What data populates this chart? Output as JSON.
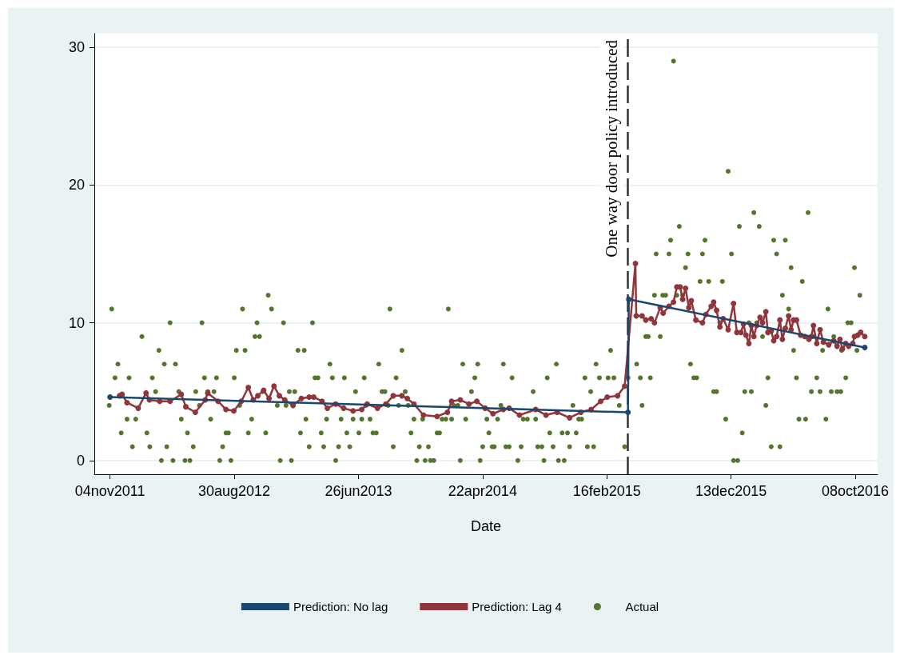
{
  "chart_data": {
    "type": "line",
    "xlabel": "Date",
    "marker": "circle",
    "grid": "y",
    "legend": "bottom",
    "xlim": [
      "2011-09-27",
      "2016-12-01"
    ],
    "xticks": [
      {
        "value": "2011-11-04",
        "label": "04nov2011"
      },
      {
        "value": "2012-08-30",
        "label": "30aug2012"
      },
      {
        "value": "2013-06-26",
        "label": "26jun2013"
      },
      {
        "value": "2014-04-22",
        "label": "22apr2014"
      },
      {
        "value": "2015-02-16",
        "label": "16feb2015"
      },
      {
        "value": "2015-12-13",
        "label": "13dec2015"
      },
      {
        "value": "2016-10-08",
        "label": "08oct2016"
      }
    ],
    "ylim": [
      -1,
      31
    ],
    "yticks": [
      0,
      10,
      20,
      30
    ],
    "ref_lines": [
      {
        "axis": "x",
        "value": "2015-04-08",
        "label": "One way door policy introduced",
        "color": "#333333",
        "line_style": "dashed"
      }
    ],
    "series": [
      {
        "name": "Prediction: No lag",
        "color": "#1a476f",
        "x": [
          "2011-11-04",
          "2015-04-08",
          "2015-04-10",
          "2016-10-31"
        ],
        "values": [
          4.6,
          3.5,
          11.7,
          8.2
        ]
      },
      {
        "name": "Prediction: Lag 4",
        "color": "#90353b",
        "x": [
          "2011-11-27",
          "2011-12-03",
          "2011-12-15",
          "2012-01-11",
          "2012-01-30",
          "2012-02-07",
          "2012-03-03",
          "2012-03-28",
          "2012-04-24",
          "2012-05-05",
          "2012-05-28",
          "2012-06-21",
          "2012-06-27",
          "2012-07-22",
          "2012-08-10",
          "2012-08-29",
          "2012-09-16",
          "2012-10-03",
          "2012-10-15",
          "2012-10-26",
          "2012-11-09",
          "2012-11-22",
          "2012-12-04",
          "2012-12-17",
          "2012-12-30",
          "2013-01-19",
          "2013-02-08",
          "2013-02-27",
          "2013-03-10",
          "2013-03-30",
          "2013-04-12",
          "2013-05-02",
          "2013-05-21",
          "2013-06-13",
          "2013-07-04",
          "2013-07-17",
          "2013-08-11",
          "2013-08-31",
          "2013-09-18",
          "2013-10-09",
          "2013-10-22",
          "2013-11-07",
          "2013-11-30",
          "2014-01-02",
          "2014-01-27",
          "2014-02-06",
          "2014-02-27",
          "2014-03-20",
          "2014-04-08",
          "2014-04-28",
          "2014-05-17",
          "2014-06-11",
          "2014-06-25",
          "2014-07-20",
          "2014-08-28",
          "2014-09-22",
          "2014-10-19",
          "2014-11-18",
          "2014-12-15",
          "2015-01-09",
          "2015-02-01",
          "2015-02-17",
          "2015-03-14",
          "2015-03-31",
          "2015-04-26",
          "2015-04-28",
          "2015-05-12",
          "2015-05-21",
          "2015-06-03",
          "2015-06-11",
          "2015-06-25",
          "2015-07-02",
          "2015-07-16",
          "2015-07-27",
          "2015-08-04",
          "2015-08-12",
          "2015-08-18",
          "2015-08-25",
          "2015-09-02",
          "2015-09-08",
          "2015-09-19",
          "2015-10-05",
          "2015-10-13",
          "2015-10-26",
          "2015-11-01",
          "2015-11-08",
          "2015-11-16",
          "2015-11-24",
          "2015-12-06",
          "2015-12-19",
          "2015-12-27",
          "2016-01-06",
          "2016-01-12",
          "2016-01-18",
          "2016-01-25",
          "2016-01-31",
          "2016-02-06",
          "2016-02-13",
          "2016-02-21",
          "2016-02-27",
          "2016-03-06",
          "2016-03-11",
          "2016-03-19",
          "2016-03-25",
          "2016-04-01",
          "2016-04-09",
          "2016-04-15",
          "2016-04-22",
          "2016-04-30",
          "2016-05-06",
          "2016-05-12",
          "2016-05-19",
          "2016-05-29",
          "2016-06-08",
          "2016-06-18",
          "2016-06-24",
          "2016-06-29",
          "2016-07-07",
          "2016-07-15",
          "2016-07-23",
          "2016-08-05",
          "2016-08-17",
          "2016-08-25",
          "2016-09-01",
          "2016-09-07",
          "2016-09-15",
          "2016-09-22",
          "2016-10-02",
          "2016-10-06",
          "2016-10-14",
          "2016-10-21",
          "2016-10-31"
        ],
        "values": [
          4.7,
          4.8,
          4.2,
          3.8,
          4.9,
          4.4,
          4.3,
          4.3,
          4.8,
          3.9,
          3.5,
          4.4,
          4.9,
          4.3,
          3.7,
          3.6,
          4.3,
          5.3,
          4.4,
          4.7,
          5.1,
          4.5,
          5.4,
          4.7,
          4.4,
          4.0,
          4.5,
          4.6,
          4.6,
          4.3,
          3.8,
          4.1,
          3.8,
          3.6,
          3.7,
          4.1,
          3.8,
          4.1,
          4.7,
          4.7,
          4.5,
          4.1,
          3.3,
          3.2,
          3.5,
          4.3,
          4.4,
          4.1,
          4.3,
          3.8,
          3.4,
          3.7,
          3.8,
          3.3,
          3.7,
          3.3,
          3.5,
          3.1,
          3.5,
          3.7,
          4.3,
          4.6,
          4.7,
          5.4,
          14.3,
          10.5,
          10.5,
          10.2,
          10.3,
          10.0,
          11.1,
          10.7,
          11.2,
          11.5,
          12.6,
          12.6,
          11.7,
          12.5,
          11.1,
          11.6,
          10.2,
          10.0,
          10.6,
          11.2,
          11.5,
          10.9,
          9.7,
          10.3,
          9.5,
          11.4,
          9.3,
          9.3,
          9.9,
          9.1,
          8.5,
          9.8,
          9.0,
          9.8,
          10.4,
          10.0,
          10.8,
          9.3,
          9.4,
          8.7,
          9.0,
          10.2,
          8.8,
          9.6,
          10.5,
          9.5,
          10.2,
          10.2,
          9.1,
          9.0,
          8.8,
          9.0,
          9.8,
          8.5,
          9.5,
          8.6,
          8.4,
          8.7,
          8.3,
          8.8,
          8.1,
          8.5,
          8.3,
          8.5,
          9.0,
          9.1,
          9.3,
          9.0
        ]
      },
      {
        "name": "Actual",
        "type": "scatter",
        "color": "#55752f",
        "x": [
          "2011-11-02",
          "2011-11-08",
          "2011-11-16",
          "2011-11-23",
          "2011-12-01",
          "2011-12-15",
          "2011-12-20",
          "2011-12-28",
          "2012-01-05",
          "2012-01-20",
          "2012-02-01",
          "2012-02-08",
          "2012-02-14",
          "2012-02-22",
          "2012-03-01",
          "2012-03-07",
          "2012-03-14",
          "2012-03-20",
          "2012-03-28",
          "2012-04-04",
          "2012-04-10",
          "2012-04-18",
          "2012-04-24",
          "2012-05-03",
          "2012-05-09",
          "2012-05-15",
          "2012-05-23",
          "2012-05-29",
          "2012-06-07",
          "2012-06-13",
          "2012-06-19",
          "2012-06-27",
          "2012-07-04",
          "2012-07-12",
          "2012-07-18",
          "2012-07-26",
          "2012-08-02",
          "2012-08-10",
          "2012-08-16",
          "2012-08-22",
          "2012-08-30",
          "2012-09-04",
          "2012-09-12",
          "2012-09-19",
          "2012-09-25",
          "2012-10-03",
          "2012-10-11",
          "2012-10-19",
          "2012-10-24",
          "2012-10-30",
          "2012-11-07",
          "2012-11-14",
          "2012-11-20",
          "2012-11-28",
          "2012-12-12",
          "2012-12-19",
          "2012-12-27",
          "2013-01-02",
          "2013-01-10",
          "2013-01-15",
          "2013-01-23",
          "2013-01-31",
          "2013-02-06",
          "2013-02-15",
          "2013-02-19",
          "2013-02-27",
          "2013-03-07",
          "2013-03-13",
          "2013-03-20",
          "2013-03-28",
          "2013-04-03",
          "2013-04-10",
          "2013-04-18",
          "2013-04-24",
          "2013-05-02",
          "2013-05-09",
          "2013-05-15",
          "2013-05-23",
          "2013-05-29",
          "2013-06-05",
          "2013-06-13",
          "2013-06-19",
          "2013-06-27",
          "2013-07-04",
          "2013-07-10",
          "2013-07-14",
          "2013-07-24",
          "2013-07-31",
          "2013-08-08",
          "2013-08-14",
          "2013-08-22",
          "2013-08-29",
          "2013-09-06",
          "2013-09-10",
          "2013-09-18",
          "2013-09-25",
          "2013-10-01",
          "2013-10-09",
          "2013-10-17",
          "2013-10-24",
          "2013-10-31",
          "2013-11-07",
          "2013-11-14",
          "2013-11-20",
          "2013-11-28",
          "2013-12-04",
          "2013-12-12",
          "2013-12-17",
          "2013-12-25",
          "2014-01-02",
          "2014-01-08",
          "2014-01-14",
          "2014-01-23",
          "2014-01-29",
          "2014-02-06",
          "2014-02-11",
          "2014-02-21",
          "2014-02-27",
          "2014-03-05",
          "2014-03-12",
          "2014-03-26",
          "2014-04-03",
          "2014-04-10",
          "2014-04-16",
          "2014-04-22",
          "2014-05-02",
          "2014-05-07",
          "2014-05-15",
          "2014-05-20",
          "2014-05-28",
          "2014-06-05",
          "2014-06-11",
          "2014-06-17",
          "2014-06-25",
          "2014-07-02",
          "2014-07-16",
          "2014-07-24",
          "2014-07-29",
          "2014-08-08",
          "2014-08-22",
          "2014-08-28",
          "2014-09-02",
          "2014-09-12",
          "2014-09-17",
          "2014-09-25",
          "2014-10-01",
          "2014-10-09",
          "2014-10-17",
          "2014-10-22",
          "2014-10-31",
          "2014-11-05",
          "2014-11-13",
          "2014-11-18",
          "2014-11-26",
          "2014-12-04",
          "2014-12-10",
          "2014-12-17",
          "2014-12-25",
          "2014-12-31",
          "2015-01-08",
          "2015-01-15",
          "2015-01-21",
          "2015-01-29",
          "2015-02-19",
          "2015-02-25",
          "2015-03-05",
          "2015-03-18",
          "2015-03-31",
          "2015-04-08",
          "2015-04-29",
          "2015-05-08",
          "2015-05-12",
          "2015-05-21",
          "2015-05-27",
          "2015-06-01",
          "2015-06-11",
          "2015-06-15",
          "2015-06-25",
          "2015-07-01",
          "2015-07-08",
          "2015-07-16",
          "2015-07-20",
          "2015-07-27",
          "2015-08-04",
          "2015-08-10",
          "2015-08-18",
          "2015-08-25",
          "2015-08-31",
          "2015-09-06",
          "2015-09-14",
          "2015-09-21",
          "2015-09-29",
          "2015-10-05",
          "2015-10-11",
          "2015-10-20",
          "2015-11-01",
          "2015-11-08",
          "2015-11-16",
          "2015-11-22",
          "2015-11-30",
          "2015-12-06",
          "2015-12-14",
          "2015-12-19",
          "2015-12-29",
          "2016-01-02",
          "2016-01-09",
          "2016-01-15",
          "2016-01-25",
          "2016-01-31",
          "2016-02-06",
          "2016-02-13",
          "2016-02-19",
          "2016-02-27",
          "2016-03-06",
          "2016-03-11",
          "2016-03-19",
          "2016-03-25",
          "2016-04-01",
          "2016-04-09",
          "2016-04-15",
          "2016-04-22",
          "2016-04-30",
          "2016-05-06",
          "2016-05-12",
          "2016-05-19",
          "2016-05-25",
          "2016-06-02",
          "2016-06-10",
          "2016-06-16",
          "2016-06-24",
          "2016-06-30",
          "2016-07-07",
          "2016-07-15",
          "2016-07-21",
          "2016-07-29",
          "2016-08-03",
          "2016-08-11",
          "2016-08-17",
          "2016-08-25",
          "2016-09-03",
          "2016-09-05",
          "2016-09-15",
          "2016-09-20",
          "2016-09-28",
          "2016-10-06",
          "2016-10-12",
          "2016-10-19"
        ],
        "values": [
          4,
          11,
          6,
          7,
          2,
          3,
          6,
          1,
          3,
          9,
          2,
          1,
          6,
          5,
          8,
          0,
          7,
          1,
          10,
          0,
          7,
          5,
          3,
          0,
          2,
          0,
          1,
          5,
          4,
          10,
          6,
          5,
          3,
          5,
          6,
          0,
          1,
          2,
          2,
          0,
          6,
          8,
          4,
          11,
          8,
          2,
          3,
          9,
          10,
          9,
          5,
          2,
          12,
          11,
          4,
          0,
          10,
          4,
          5,
          0,
          5,
          8,
          2,
          8,
          3,
          1,
          10,
          6,
          6,
          2,
          1,
          3,
          7,
          6,
          0,
          1,
          3,
          6,
          2,
          1,
          3,
          5,
          2,
          3,
          6,
          4,
          3,
          2,
          2,
          7,
          5,
          5,
          4,
          11,
          1,
          6,
          4,
          8,
          5,
          4,
          2,
          3,
          0,
          1,
          3,
          0,
          1,
          0,
          0,
          2,
          2,
          3,
          3,
          11,
          3,
          4,
          4,
          0,
          7,
          3,
          5,
          6,
          7,
          0,
          1,
          3,
          2,
          1,
          1,
          3,
          4,
          7,
          1,
          1,
          6,
          0,
          1,
          3,
          3,
          5,
          3,
          1,
          1,
          0,
          6,
          2,
          1,
          7,
          0,
          2,
          0,
          2,
          1,
          4,
          2,
          3,
          3,
          6,
          1,
          5,
          1,
          7,
          6,
          6,
          8,
          6,
          4,
          1,
          6,
          7,
          6,
          4,
          9,
          9,
          6,
          12,
          15,
          9,
          12,
          12,
          15,
          16,
          29,
          12,
          17,
          12,
          14,
          15,
          7,
          6,
          6,
          13,
          15,
          16,
          13,
          5,
          5,
          10,
          13,
          3,
          21,
          15,
          0,
          0,
          17,
          2,
          5,
          10,
          5,
          18,
          10,
          17,
          9,
          4,
          6,
          1,
          16,
          15,
          1,
          12,
          16,
          11,
          14,
          8,
          6,
          3,
          13,
          3,
          18,
          5,
          9,
          6,
          5,
          8,
          3,
          11,
          5,
          9,
          5,
          5,
          8,
          6,
          10,
          10,
          14,
          8,
          12
        ]
      }
    ]
  }
}
